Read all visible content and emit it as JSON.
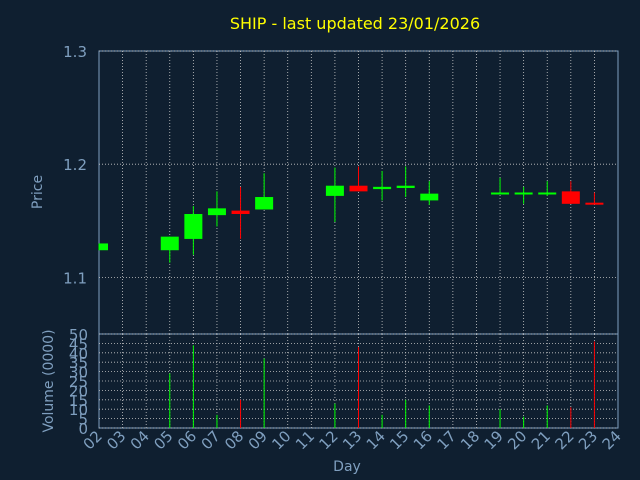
{
  "chart_data": [
    {
      "type": "candlestick",
      "title": "SHIP - last updated 23/01/2026",
      "ylabel": "Price",
      "ylim": [
        1.05,
        1.3
      ],
      "yticks": [
        "1.1",
        "1.2",
        "1.3"
      ],
      "grid": true,
      "candles": [
        {
          "day": "02",
          "open": 1.124,
          "close": 1.13,
          "high": 1.13,
          "low": 1.124
        },
        {
          "day": "05",
          "open": 1.124,
          "close": 1.136,
          "high": 1.136,
          "low": 1.113
        },
        {
          "day": "06",
          "open": 1.134,
          "close": 1.156,
          "high": 1.163,
          "low": 1.12
        },
        {
          "day": "07",
          "open": 1.155,
          "close": 1.161,
          "high": 1.176,
          "low": 1.145
        },
        {
          "day": "08",
          "open": 1.159,
          "close": 1.156,
          "high": 1.18,
          "low": 1.134
        },
        {
          "day": "09",
          "open": 1.16,
          "close": 1.171,
          "high": 1.192,
          "low": 1.16
        },
        {
          "day": "12",
          "open": 1.172,
          "close": 1.181,
          "high": 1.197,
          "low": 1.149
        },
        {
          "day": "13",
          "open": 1.181,
          "close": 1.176,
          "high": 1.198,
          "low": 1.176
        },
        {
          "day": "14",
          "open": 1.178,
          "close": 1.18,
          "high": 1.194,
          "low": 1.168
        },
        {
          "day": "15",
          "open": 1.179,
          "close": 1.181,
          "high": 1.198,
          "low": 1.171
        },
        {
          "day": "16",
          "open": 1.168,
          "close": 1.174,
          "high": 1.185,
          "low": 1.164
        },
        {
          "day": "19",
          "open": 1.174,
          "close": 1.175,
          "high": 1.188,
          "low": 1.174
        },
        {
          "day": "20",
          "open": 1.174,
          "close": 1.175,
          "high": 1.18,
          "low": 1.165
        },
        {
          "day": "21",
          "open": 1.174,
          "close": 1.175,
          "high": 1.185,
          "low": 1.172
        },
        {
          "day": "22",
          "open": 1.176,
          "close": 1.165,
          "high": 1.185,
          "low": 1.165
        },
        {
          "day": "23",
          "open": 1.166,
          "close": 1.165,
          "high": 1.175,
          "low": 1.165
        }
      ]
    },
    {
      "type": "bar",
      "ylabel": "Volume (0000)",
      "xlabel": "Day",
      "ylim": [
        0,
        50
      ],
      "yticks": [
        "0",
        "5",
        "10",
        "15",
        "20",
        "25",
        "30",
        "35",
        "40",
        "45",
        "50"
      ],
      "categories": [
        "02",
        "03",
        "04",
        "05",
        "06",
        "07",
        "08",
        "09",
        "10",
        "11",
        "12",
        "13",
        "14",
        "15",
        "16",
        "17",
        "18",
        "19",
        "20",
        "21",
        "22",
        "23",
        "24"
      ],
      "volumes": [
        {
          "day": "05",
          "value": 29,
          "direction": "up"
        },
        {
          "day": "06",
          "value": 44,
          "direction": "up"
        },
        {
          "day": "07",
          "value": 7,
          "direction": "up"
        },
        {
          "day": "08",
          "value": 15,
          "direction": "down"
        },
        {
          "day": "09",
          "value": 37,
          "direction": "up"
        },
        {
          "day": "12",
          "value": 13,
          "direction": "up"
        },
        {
          "day": "13",
          "value": 43,
          "direction": "down"
        },
        {
          "day": "14",
          "value": 7,
          "direction": "up"
        },
        {
          "day": "15",
          "value": 15,
          "direction": "up"
        },
        {
          "day": "16",
          "value": 12,
          "direction": "up"
        },
        {
          "day": "19",
          "value": 10,
          "direction": "up"
        },
        {
          "day": "20",
          "value": 6,
          "direction": "up"
        },
        {
          "day": "21",
          "value": 12,
          "direction": "up"
        },
        {
          "day": "22",
          "value": 11,
          "direction": "down"
        },
        {
          "day": "23",
          "value": 46,
          "direction": "down"
        }
      ]
    }
  ],
  "colors": {
    "background": "#0f1f30",
    "title": "#ffff00",
    "axis_text": "#7f9fbf",
    "grid": "#c8c8c8",
    "up": "#00ff00",
    "down": "#ff0000"
  }
}
